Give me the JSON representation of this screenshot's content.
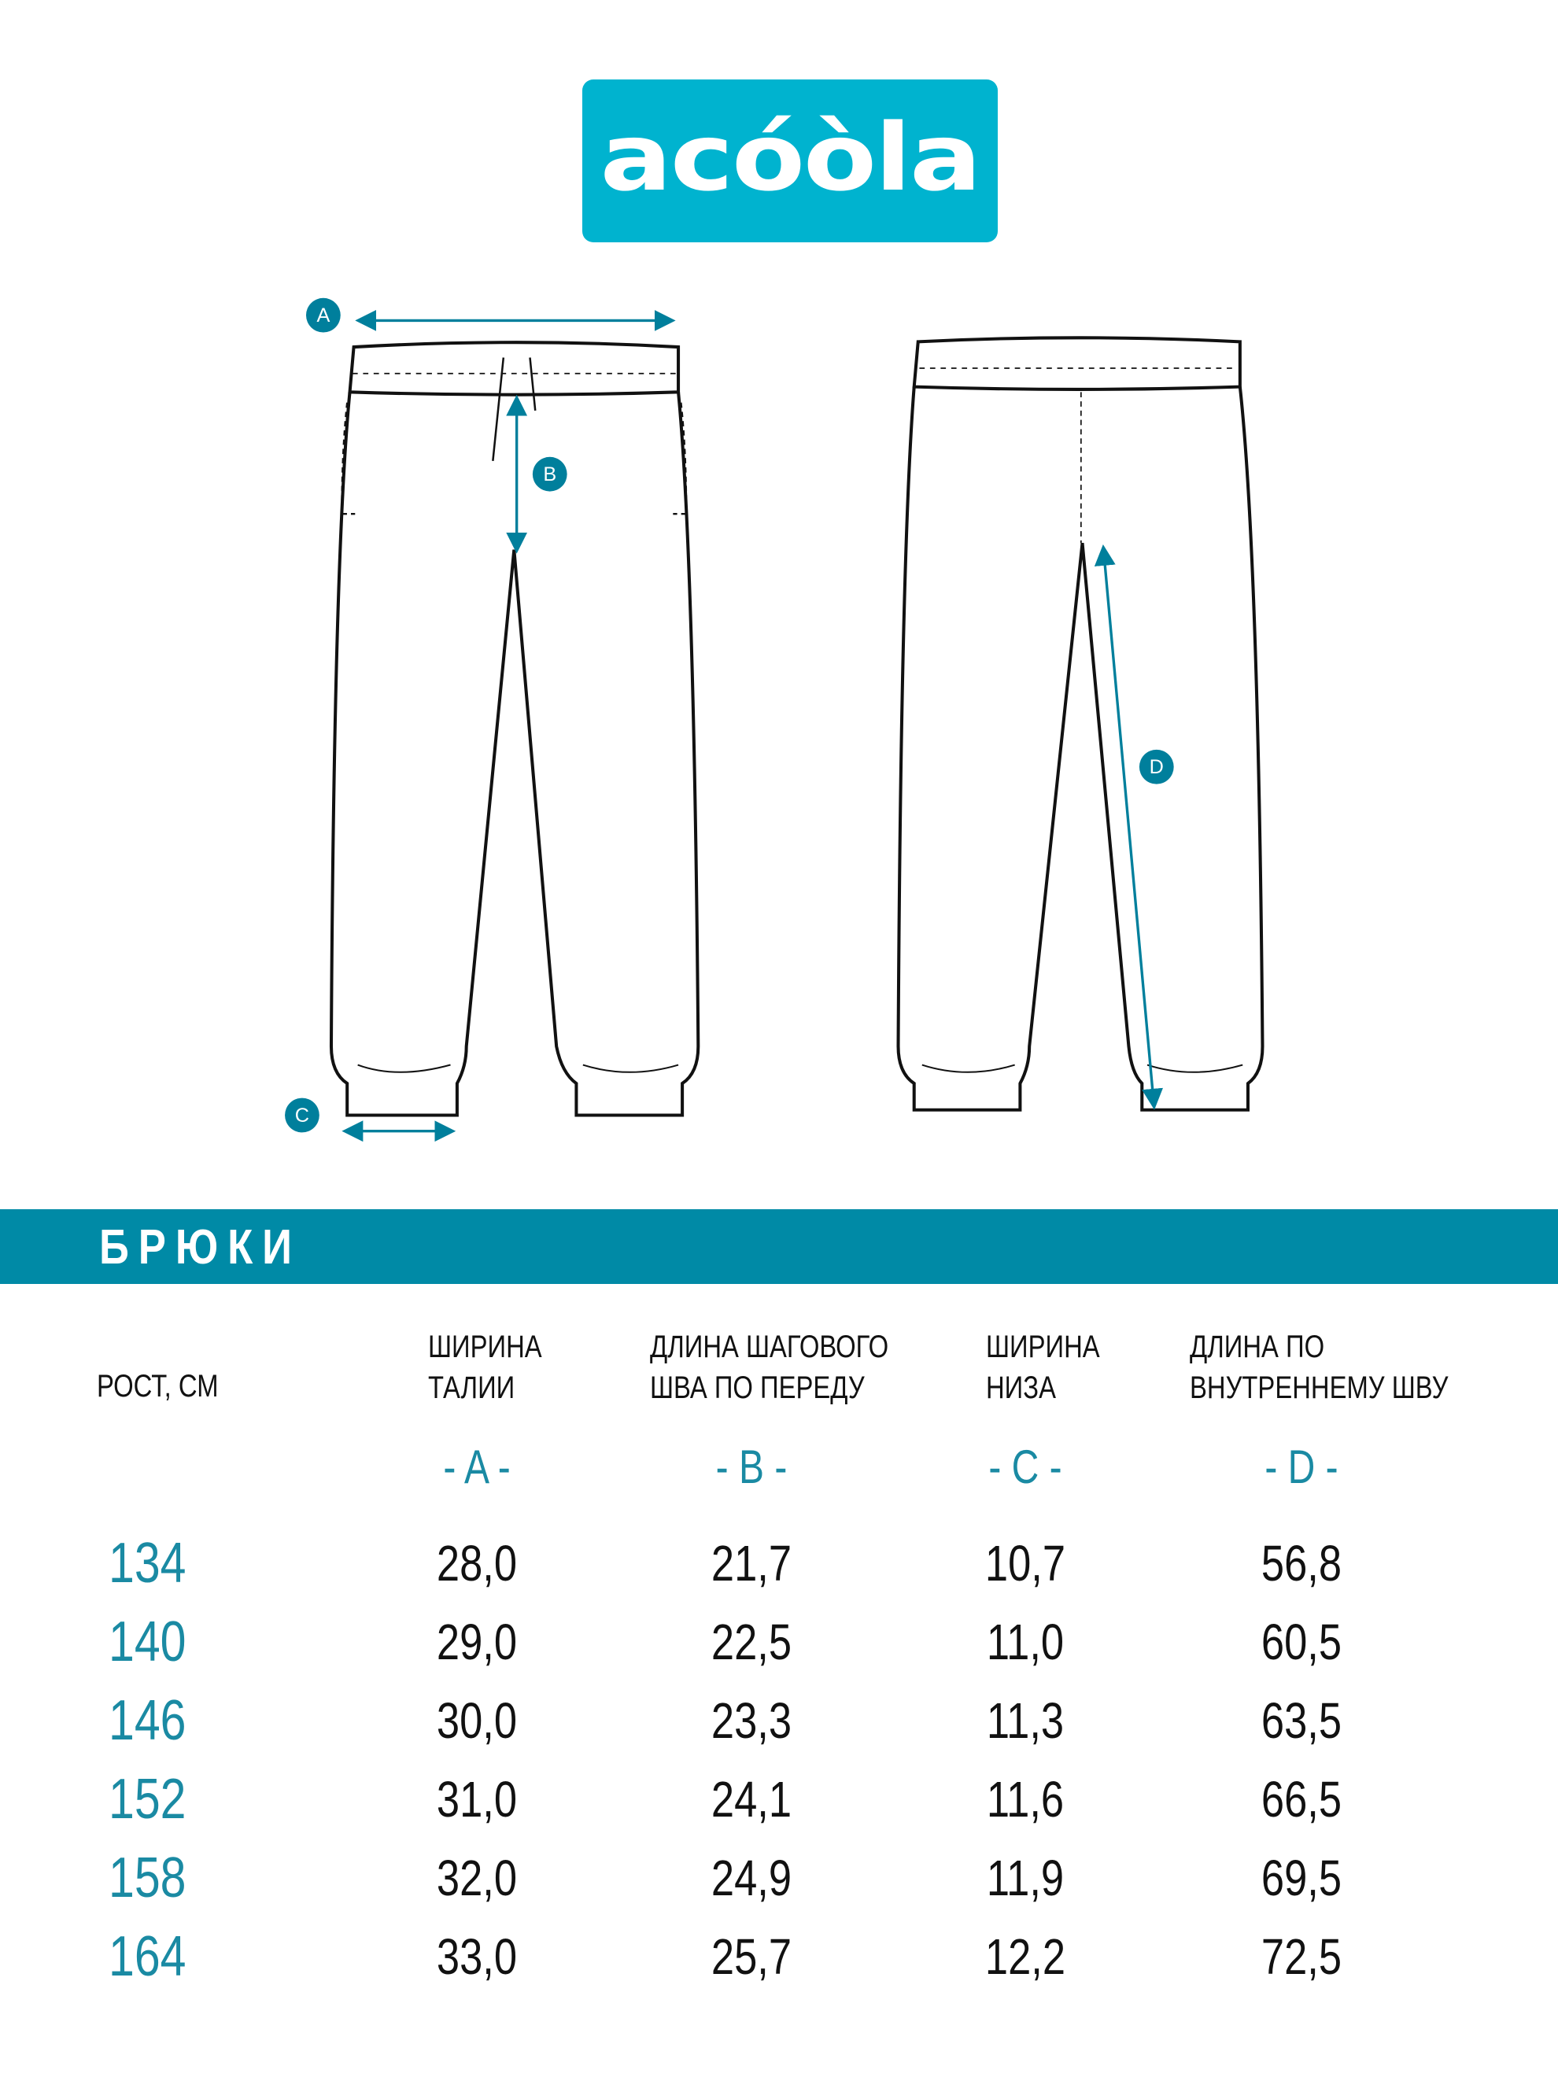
{
  "brand": {
    "logo_text": "acóòla",
    "color": "#00b3cf"
  },
  "banner": {
    "title": "БРЮКИ",
    "color": "#008aa6"
  },
  "diagram": {
    "markers": [
      "A",
      "B",
      "C",
      "D"
    ],
    "accent": "#007f9c"
  },
  "table": {
    "size_header": "РОСТ, СМ",
    "columns": [
      {
        "line1": "ШИРИНА",
        "line2": "ТАЛИИ",
        "letter": "- A -"
      },
      {
        "line1": "ДЛИНА ШАГОВОГО",
        "line2": "ШВА ПО ПЕРЕДУ",
        "letter": "- B -"
      },
      {
        "line1": "ШИРИНА",
        "line2": "НИЗА",
        "letter": "- C -"
      },
      {
        "line1": "ДЛИНА ПО",
        "line2": "ВНУТРЕННЕМУ ШВУ",
        "letter": "- D -"
      }
    ],
    "rows": [
      {
        "size": "134",
        "values": [
          "28,0",
          "21,7",
          "10,7",
          "56,8"
        ]
      },
      {
        "size": "140",
        "values": [
          "29,0",
          "22,5",
          "11,0",
          "60,5"
        ]
      },
      {
        "size": "146",
        "values": [
          "30,0",
          "23,3",
          "11,3",
          "63,5"
        ]
      },
      {
        "size": "152",
        "values": [
          "31,0",
          "24,1",
          "11,6",
          "66,5"
        ]
      },
      {
        "size": "158",
        "values": [
          "32,0",
          "24,9",
          "11,9",
          "69,5"
        ]
      },
      {
        "size": "164",
        "values": [
          "33,0",
          "25,7",
          "12,2",
          "72,5"
        ]
      }
    ]
  }
}
